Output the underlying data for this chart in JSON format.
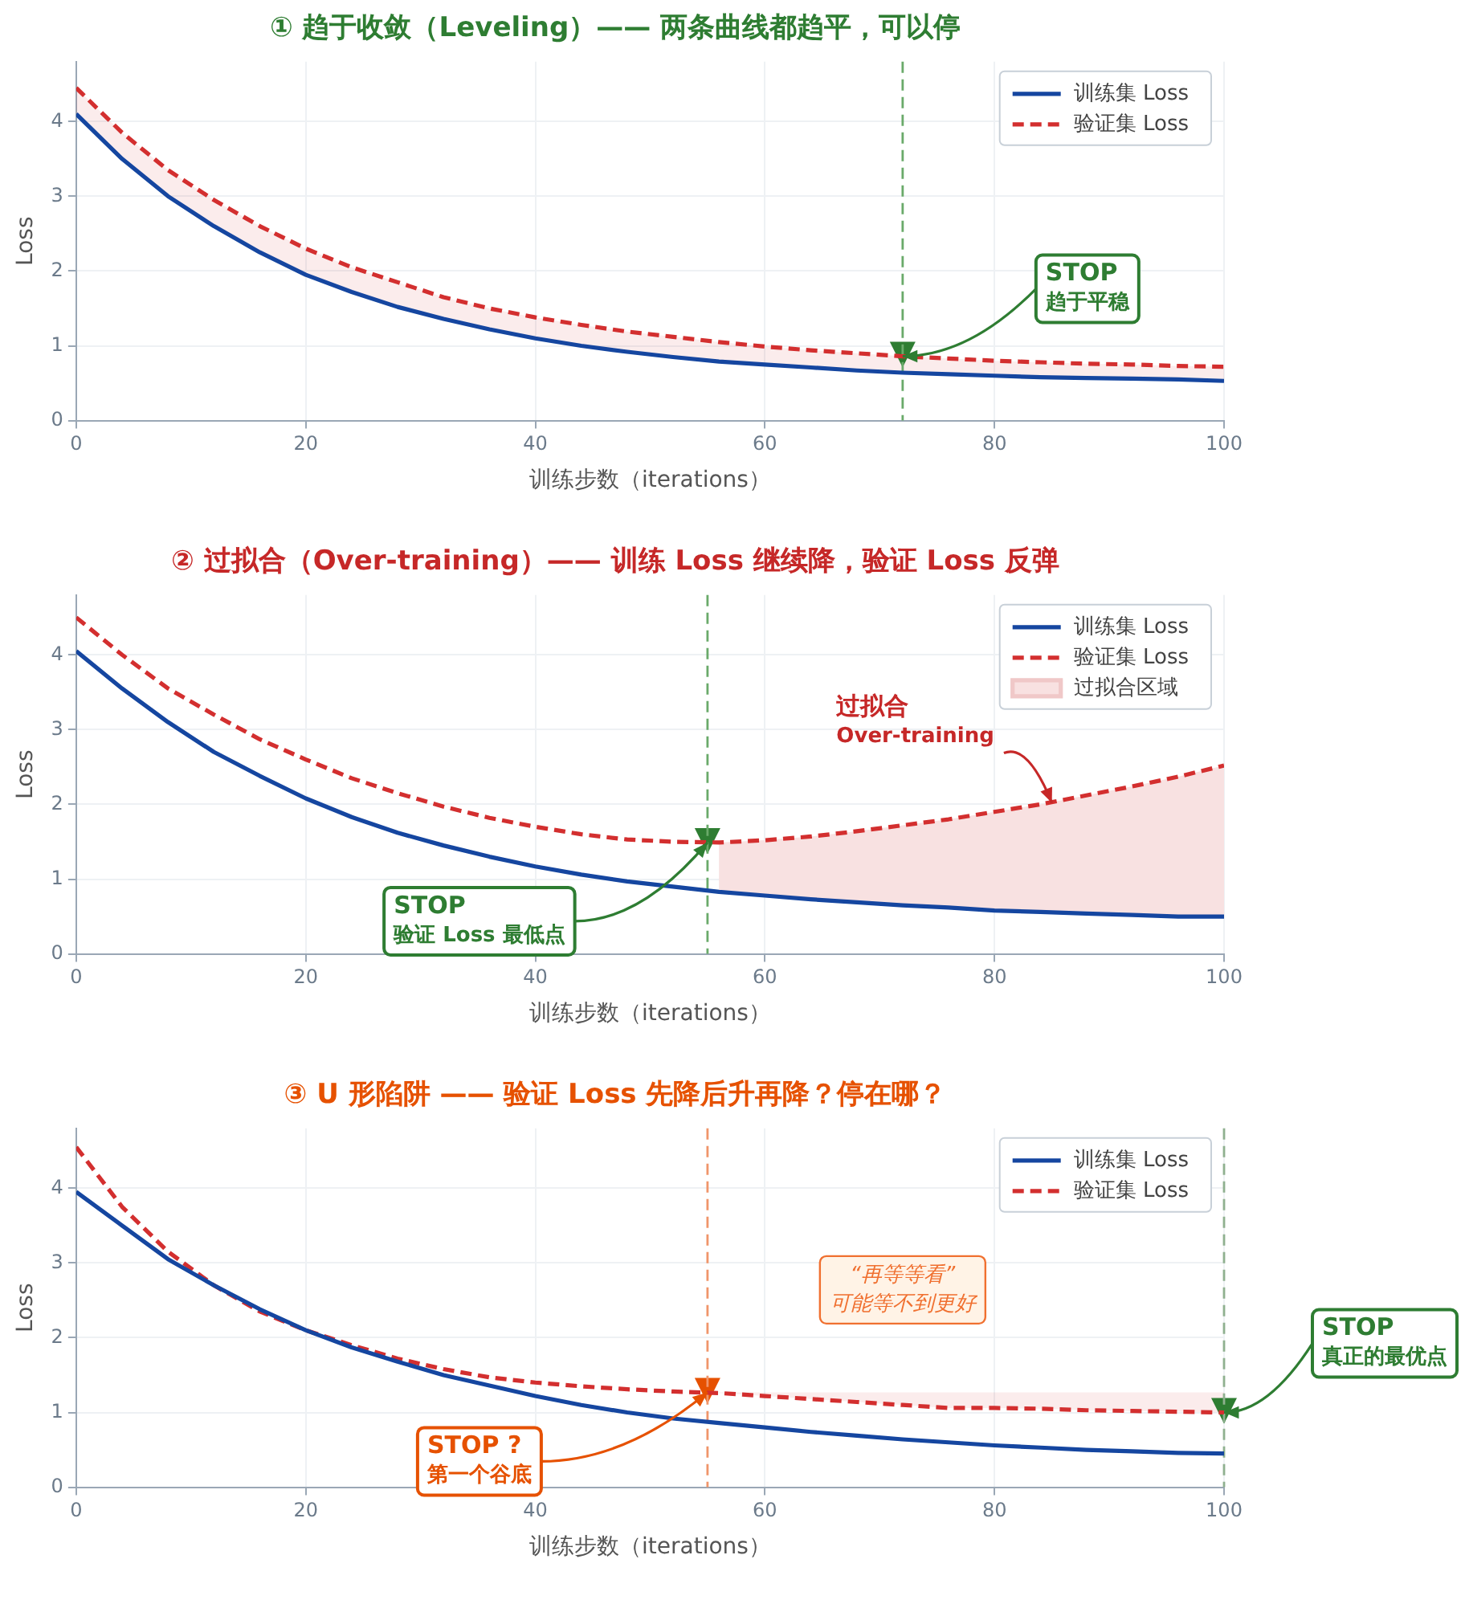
{
  "chart_data": [
    {
      "type": "line",
      "title": "① 趋于收敛（Leveling）—— 两条曲线都趋平，可以停",
      "xlabel": "训练步数（iterations）",
      "ylabel": "Loss",
      "x": [
        0,
        4,
        8,
        12,
        16,
        20,
        24,
        28,
        32,
        36,
        40,
        44,
        48,
        52,
        56,
        60,
        64,
        68,
        72,
        76,
        80,
        84,
        88,
        92,
        96,
        100
      ],
      "series": [
        {
          "name": "训练集 Loss",
          "line_style": "solid",
          "color": "#1546a0",
          "values": [
            4.1,
            3.5,
            3.0,
            2.6,
            2.25,
            1.95,
            1.72,
            1.52,
            1.36,
            1.22,
            1.1,
            1.0,
            0.92,
            0.85,
            0.79,
            0.75,
            0.71,
            0.67,
            0.64,
            0.62,
            0.6,
            0.58,
            0.57,
            0.56,
            0.55,
            0.53
          ]
        },
        {
          "name": "验证集 Loss",
          "line_style": "dashed",
          "color": "#d32f2f",
          "values": [
            4.45,
            3.85,
            3.35,
            2.95,
            2.6,
            2.3,
            2.05,
            1.85,
            1.65,
            1.5,
            1.38,
            1.28,
            1.19,
            1.12,
            1.05,
            0.99,
            0.94,
            0.9,
            0.86,
            0.83,
            0.8,
            0.78,
            0.76,
            0.75,
            0.73,
            0.72
          ],
          "lower": [
            4.1,
            3.5,
            3.0,
            2.6,
            2.25,
            1.95,
            1.72,
            1.52,
            1.36,
            1.22,
            1.1,
            1.0,
            0.92,
            0.85,
            0.79,
            0.75,
            0.71,
            0.67,
            0.64,
            0.62,
            0.6,
            0.58,
            0.57,
            0.56,
            0.55,
            0.53
          ],
          "upper": [
            4.45,
            3.85,
            3.35,
            2.95,
            2.6,
            2.3,
            2.05,
            1.85,
            1.65,
            1.5,
            1.38,
            1.28,
            1.19,
            1.12,
            1.05,
            0.99,
            0.94,
            0.9,
            0.86,
            0.83,
            0.8,
            0.78,
            0.76,
            0.75,
            0.73,
            0.72
          ]
        }
      ],
      "xlim": [
        0,
        100
      ],
      "xticks": [
        0,
        20,
        40,
        60,
        80,
        100
      ],
      "ylim": [
        0,
        4.8
      ],
      "yticks": [
        0,
        1,
        2,
        3,
        4
      ],
      "grid": true,
      "legend": "top right",
      "marker": "none",
      "ref_lines": [
        {
          "axis": "x",
          "value": 72,
          "color": "#6aaa6a",
          "line_style": "dashed"
        }
      ],
      "annotations": [
        {
          "text": "STOP\n趋于平稳",
          "x": 72,
          "y": 0.86
        }
      ]
    },
    {
      "type": "line",
      "title": "② 过拟合（Over-training）—— 训练 Loss 继续降，验证 Loss 反弹",
      "xlabel": "训练步数（iterations）",
      "ylabel": "Loss",
      "x": [
        0,
        4,
        8,
        12,
        16,
        20,
        24,
        28,
        32,
        36,
        40,
        44,
        48,
        52,
        56,
        60,
        64,
        68,
        72,
        76,
        80,
        84,
        88,
        92,
        96,
        100
      ],
      "series": [
        {
          "name": "训练集 Loss",
          "line_style": "solid",
          "color": "#1546a0",
          "values": [
            4.05,
            3.55,
            3.1,
            2.7,
            2.38,
            2.08,
            1.83,
            1.62,
            1.45,
            1.3,
            1.17,
            1.06,
            0.97,
            0.9,
            0.83,
            0.78,
            0.73,
            0.69,
            0.65,
            0.62,
            0.58,
            0.56,
            0.54,
            0.52,
            0.5,
            0.5
          ]
        },
        {
          "name": "验证集 Loss",
          "line_style": "dashed",
          "color": "#d32f2f",
          "values": [
            4.5,
            4.0,
            3.55,
            3.2,
            2.87,
            2.6,
            2.35,
            2.15,
            1.97,
            1.82,
            1.7,
            1.6,
            1.53,
            1.5,
            1.49,
            1.52,
            1.57,
            1.64,
            1.72,
            1.8,
            1.9,
            2.0,
            2.12,
            2.24,
            2.37,
            2.52
          ]
        },
        {
          "name": "过拟合区域",
          "type": "area",
          "color": "#f8e1e1",
          "x": [
            56,
            60,
            64,
            68,
            72,
            76,
            80,
            84,
            88,
            92,
            96,
            100
          ],
          "values": [
            1.49,
            1.52,
            1.57,
            1.64,
            1.72,
            1.8,
            1.9,
            2.0,
            2.12,
            2.24,
            2.37,
            2.52
          ]
        }
      ],
      "xlim": [
        0,
        100
      ],
      "xticks": [
        0,
        20,
        40,
        60,
        80,
        100
      ],
      "ylim": [
        0,
        4.8
      ],
      "yticks": [
        0,
        1,
        2,
        3,
        4
      ],
      "grid": true,
      "legend": "top right",
      "marker": "none",
      "ref_lines": [
        {
          "axis": "x",
          "value": 55,
          "color": "#6aaa6a",
          "line_style": "dashed"
        }
      ],
      "annotations": [
        {
          "text": "STOP\n验证 Loss 最低点",
          "x": 55,
          "y": 1.49
        },
        {
          "text": "过拟合\nOver-training",
          "x": 85,
          "y": 2.02
        }
      ]
    },
    {
      "type": "line",
      "title": "③ U 形陷阱 —— 验证 Loss 先降后升再降？停在哪？",
      "xlabel": "训练步数（iterations）",
      "ylabel": "Loss",
      "x": [
        0,
        4,
        8,
        12,
        16,
        20,
        24,
        28,
        32,
        36,
        40,
        44,
        48,
        52,
        56,
        60,
        64,
        68,
        72,
        76,
        80,
        84,
        88,
        92,
        96,
        100
      ],
      "series": [
        {
          "name": "训练集 Loss",
          "line_style": "solid",
          "color": "#1546a0",
          "values": [
            3.95,
            3.5,
            3.05,
            2.7,
            2.38,
            2.1,
            1.87,
            1.68,
            1.5,
            1.36,
            1.22,
            1.1,
            1.0,
            0.92,
            0.86,
            0.8,
            0.74,
            0.69,
            0.64,
            0.6,
            0.56,
            0.53,
            0.5,
            0.48,
            0.46,
            0.45
          ]
        },
        {
          "name": "验证集 Loss",
          "line_style": "dashed",
          "color": "#d32f2f",
          "values": [
            4.55,
            3.75,
            3.15,
            2.7,
            2.35,
            2.1,
            1.9,
            1.72,
            1.58,
            1.47,
            1.4,
            1.35,
            1.31,
            1.28,
            1.26,
            1.22,
            1.18,
            1.14,
            1.1,
            1.06,
            1.06,
            1.05,
            1.03,
            1.02,
            1.01,
            1.0
          ],
          "lower": [
            null,
            null,
            null,
            null,
            null,
            null,
            null,
            null,
            null,
            null,
            null,
            null,
            null,
            null,
            1.26,
            1.22,
            1.18,
            1.14,
            1.1,
            1.06,
            1.06,
            1.05,
            1.03,
            1.02,
            1.01,
            1.0
          ],
          "upper": [
            null,
            null,
            null,
            null,
            null,
            null,
            null,
            null,
            null,
            null,
            null,
            null,
            null,
            null,
            1.27,
            1.27,
            1.27,
            1.27,
            1.27,
            1.27,
            1.27,
            1.27,
            1.27,
            1.27,
            1.27,
            1.27
          ]
        }
      ],
      "xlim": [
        0,
        100
      ],
      "xticks": [
        0,
        20,
        40,
        60,
        80,
        100
      ],
      "ylim": [
        0,
        4.8
      ],
      "yticks": [
        0,
        1,
        2,
        3,
        4
      ],
      "grid": true,
      "legend": "top right",
      "marker": "none",
      "ref_lines": [
        {
          "axis": "x",
          "value": 55,
          "color": "#f0956a",
          "line_style": "dashed"
        },
        {
          "axis": "x",
          "value": 100,
          "color": "#8fb08f",
          "line_style": "dashed"
        }
      ],
      "annotations": [
        {
          "text": "STOP ?\n第一个谷底",
          "x": 55,
          "y": 1.27
        },
        "“再等等看”\n可能等不到更好",
        {
          "text": "STOP\n真正的最优点",
          "x": 100,
          "y": 1.0
        }
      ]
    }
  ]
}
